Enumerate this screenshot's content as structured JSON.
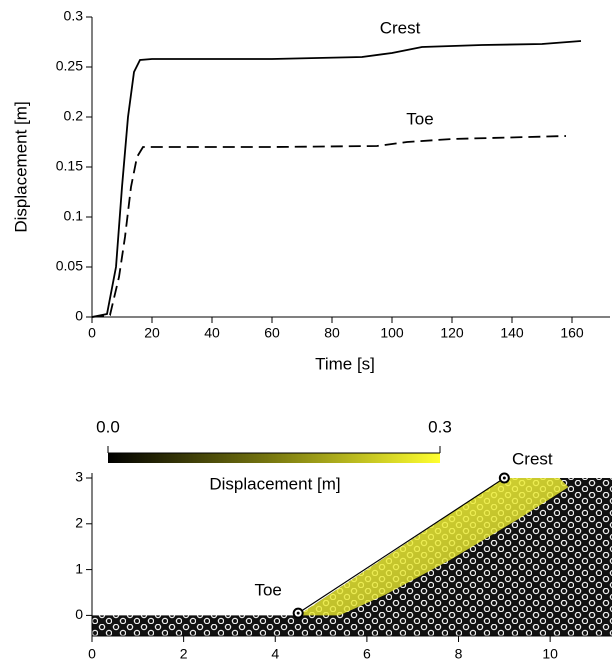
{
  "chart_data": [
    {
      "type": "line",
      "xlabel": "Time [s]",
      "ylabel": "Displacement [m]",
      "xlim": [
        0,
        170
      ],
      "ylim": [
        0,
        0.3
      ],
      "xticks": [
        0,
        20,
        40,
        60,
        80,
        100,
        120,
        140,
        160
      ],
      "yticks": [
        0,
        0.05,
        0.1,
        0.15,
        0.2,
        0.25,
        0.3
      ],
      "series": [
        {
          "name": "Crest",
          "color": "#000000",
          "dash": "none",
          "x": [
            0,
            5,
            8,
            10,
            12,
            14,
            16,
            20,
            60,
            90,
            100,
            110,
            130,
            150,
            163
          ],
          "values": [
            0,
            0.003,
            0.05,
            0.13,
            0.2,
            0.245,
            0.257,
            0.258,
            0.258,
            0.26,
            0.264,
            0.27,
            0.272,
            0.273,
            0.276
          ]
        },
        {
          "name": "Toe",
          "color": "#000000",
          "dash": "12 6",
          "x": [
            0,
            6,
            9,
            11,
            13,
            15,
            17,
            60,
            95,
            105,
            120,
            158
          ],
          "values": [
            0,
            0.002,
            0.04,
            0.08,
            0.13,
            0.16,
            0.17,
            0.17,
            0.171,
            0.175,
            0.178,
            0.181
          ]
        }
      ]
    },
    {
      "type": "slope",
      "xlim": [
        0,
        11.35
      ],
      "ylim": [
        -0.45,
        3
      ],
      "xticks": [
        0,
        2,
        4,
        6,
        8,
        10
      ],
      "yticks": [
        0,
        1,
        2,
        3
      ],
      "surface": {
        "x": [
          0,
          4.5,
          9,
          11.35
        ],
        "y": [
          0,
          0,
          3,
          3
        ]
      },
      "points": [
        {
          "name": "Toe",
          "x": 4.5,
          "y": 0.05
        },
        {
          "name": "Crest",
          "x": 9,
          "y": 3
        }
      ],
      "colorbar": {
        "label": "Displacement [m]",
        "lim": [
          0,
          0.3
        ],
        "ticks": [
          {
            "value": 0,
            "label": "0.0"
          },
          {
            "value": 0.3,
            "label": "0.3"
          }
        ]
      }
    }
  ]
}
